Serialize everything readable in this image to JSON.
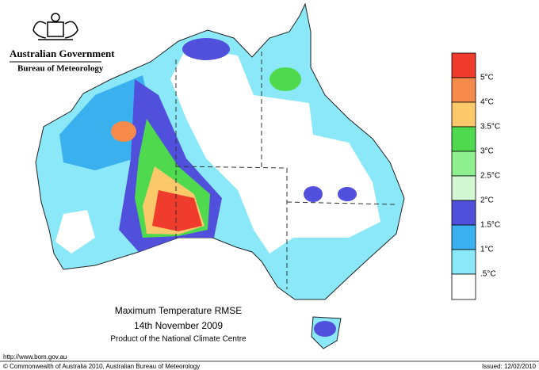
{
  "header": {
    "organisation": "Australian Government",
    "department": "Bureau of Meteorology"
  },
  "legend": {
    "labels": [
      "5°C",
      "4°C",
      "3.5°C",
      "3°C",
      "2.5°C",
      "2°C",
      "1.5°C",
      "1°C",
      ".5°C"
    ]
  },
  "map": {
    "title": "Maximum Temperature RMSE",
    "date": "14th  November  2009",
    "credit": "Product of the National Climate Centre"
  },
  "footer": {
    "url": "http://www.bom.gov.au",
    "copyright": "© Commonwealth of Australia 2010, Australian Bureau of Meteorology",
    "issued": "Issued: 12/02/2010"
  }
}
